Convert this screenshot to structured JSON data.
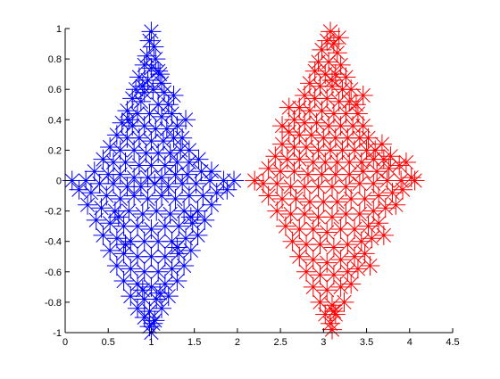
{
  "chart_data": {
    "type": "scatter",
    "title": "",
    "xlabel": "",
    "ylabel": "",
    "xlim": [
      0,
      4.5
    ],
    "ylim": [
      -1,
      1
    ],
    "grid": false,
    "legend": "none",
    "marker": "asterisk",
    "x_ticks": [
      "0",
      "0.5",
      "1",
      "1.5",
      "2",
      "2.5",
      "3",
      "3.5",
      "4",
      "4.5"
    ],
    "y_ticks": [
      "-1",
      "-0.8",
      "-0.6",
      "-0.4",
      "-0.2",
      "0",
      "0.2",
      "0.4",
      "0.6",
      "0.8",
      "1"
    ],
    "series": [
      {
        "color": "#0000ff",
        "points": [
          [
            1.0,
            0.98
          ],
          [
            0.98,
            0.92
          ],
          [
            1.03,
            0.88
          ],
          [
            0.95,
            0.82
          ],
          [
            1.05,
            0.8
          ],
          [
            0.92,
            0.76
          ],
          [
            1.0,
            0.74
          ],
          [
            1.08,
            0.72
          ],
          [
            0.86,
            0.68
          ],
          [
            0.96,
            0.66
          ],
          [
            1.12,
            0.64
          ],
          [
            0.82,
            0.6
          ],
          [
            0.92,
            0.58
          ],
          [
            1.02,
            0.6
          ],
          [
            1.15,
            0.58
          ],
          [
            0.78,
            0.54
          ],
          [
            0.88,
            0.52
          ],
          [
            1.08,
            0.5
          ],
          [
            1.2,
            0.5
          ],
          [
            0.72,
            0.46
          ],
          [
            0.84,
            0.44
          ],
          [
            0.98,
            0.44
          ],
          [
            1.12,
            0.42
          ],
          [
            1.24,
            0.44
          ],
          [
            0.66,
            0.38
          ],
          [
            0.78,
            0.36
          ],
          [
            0.92,
            0.36
          ],
          [
            1.05,
            0.34
          ],
          [
            1.18,
            0.34
          ],
          [
            1.3,
            0.36
          ],
          [
            0.6,
            0.3
          ],
          [
            0.72,
            0.28
          ],
          [
            0.86,
            0.28
          ],
          [
            1.0,
            0.26
          ],
          [
            1.14,
            0.26
          ],
          [
            1.26,
            0.28
          ],
          [
            1.36,
            0.28
          ],
          [
            0.52,
            0.22
          ],
          [
            0.64,
            0.2
          ],
          [
            0.8,
            0.2
          ],
          [
            0.94,
            0.18
          ],
          [
            1.08,
            0.18
          ],
          [
            1.22,
            0.18
          ],
          [
            1.34,
            0.2
          ],
          [
            1.44,
            0.2
          ],
          [
            0.44,
            0.14
          ],
          [
            0.56,
            0.12
          ],
          [
            0.7,
            0.12
          ],
          [
            0.86,
            0.1
          ],
          [
            1.0,
            0.1
          ],
          [
            1.16,
            0.1
          ],
          [
            1.3,
            0.12
          ],
          [
            1.44,
            0.12
          ],
          [
            1.55,
            0.14
          ],
          [
            0.34,
            0.06
          ],
          [
            0.5,
            0.04
          ],
          [
            0.64,
            0.04
          ],
          [
            0.8,
            0.02
          ],
          [
            0.96,
            0.02
          ],
          [
            1.12,
            0.02
          ],
          [
            1.28,
            0.04
          ],
          [
            1.42,
            0.04
          ],
          [
            1.58,
            0.06
          ],
          [
            1.7,
            0.06
          ],
          [
            0.24,
            0.0
          ],
          [
            0.4,
            -0.02
          ],
          [
            0.56,
            -0.02
          ],
          [
            0.72,
            -0.04
          ],
          [
            0.88,
            -0.04
          ],
          [
            1.04,
            -0.02
          ],
          [
            1.2,
            -0.04
          ],
          [
            1.36,
            -0.02
          ],
          [
            1.52,
            -0.02
          ],
          [
            1.68,
            0.0
          ],
          [
            1.84,
            0.0
          ],
          [
            1.96,
            0.0
          ],
          [
            0.08,
            0.0
          ],
          [
            0.16,
            -0.06
          ],
          [
            0.3,
            -0.08
          ],
          [
            0.48,
            -0.1
          ],
          [
            0.64,
            -0.12
          ],
          [
            0.8,
            -0.1
          ],
          [
            0.96,
            -0.12
          ],
          [
            1.12,
            -0.1
          ],
          [
            1.28,
            -0.12
          ],
          [
            1.44,
            -0.1
          ],
          [
            1.6,
            -0.1
          ],
          [
            1.76,
            -0.08
          ],
          [
            1.88,
            -0.06
          ],
          [
            0.26,
            -0.16
          ],
          [
            0.42,
            -0.18
          ],
          [
            0.58,
            -0.2
          ],
          [
            0.74,
            -0.2
          ],
          [
            0.9,
            -0.22
          ],
          [
            1.06,
            -0.2
          ],
          [
            1.22,
            -0.22
          ],
          [
            1.38,
            -0.2
          ],
          [
            1.54,
            -0.2
          ],
          [
            1.7,
            -0.16
          ],
          [
            0.36,
            -0.26
          ],
          [
            0.52,
            -0.28
          ],
          [
            0.68,
            -0.3
          ],
          [
            0.84,
            -0.3
          ],
          [
            1.0,
            -0.32
          ],
          [
            1.16,
            -0.3
          ],
          [
            1.32,
            -0.3
          ],
          [
            1.48,
            -0.28
          ],
          [
            1.62,
            -0.26
          ],
          [
            0.44,
            -0.36
          ],
          [
            0.6,
            -0.38
          ],
          [
            0.76,
            -0.4
          ],
          [
            0.92,
            -0.4
          ],
          [
            1.08,
            -0.4
          ],
          [
            1.24,
            -0.4
          ],
          [
            1.4,
            -0.38
          ],
          [
            1.54,
            -0.36
          ],
          [
            0.52,
            -0.46
          ],
          [
            0.68,
            -0.48
          ],
          [
            0.84,
            -0.5
          ],
          [
            1.0,
            -0.5
          ],
          [
            1.16,
            -0.5
          ],
          [
            1.32,
            -0.48
          ],
          [
            1.46,
            -0.46
          ],
          [
            0.6,
            -0.56
          ],
          [
            0.76,
            -0.58
          ],
          [
            0.92,
            -0.6
          ],
          [
            1.08,
            -0.6
          ],
          [
            1.24,
            -0.58
          ],
          [
            1.38,
            -0.56
          ],
          [
            0.68,
            -0.66
          ],
          [
            0.84,
            -0.68
          ],
          [
            1.0,
            -0.7
          ],
          [
            1.16,
            -0.68
          ],
          [
            1.3,
            -0.66
          ],
          [
            0.76,
            -0.76
          ],
          [
            0.92,
            -0.78
          ],
          [
            1.06,
            -0.78
          ],
          [
            1.2,
            -0.76
          ],
          [
            0.84,
            -0.84
          ],
          [
            0.98,
            -0.86
          ],
          [
            1.12,
            -0.84
          ],
          [
            0.92,
            -0.9
          ],
          [
            1.04,
            -0.92
          ],
          [
            0.98,
            -0.96
          ],
          [
            1.0,
            -1.0
          ],
          [
            1.02,
            -0.94
          ],
          [
            0.9,
            -0.72
          ],
          [
            1.1,
            -0.74
          ],
          [
            0.7,
            -0.42
          ],
          [
            1.3,
            -0.44
          ],
          [
            0.62,
            -0.24
          ],
          [
            1.46,
            -0.24
          ],
          [
            1.1,
            0.7
          ],
          [
            0.9,
            0.62
          ],
          [
            1.26,
            0.56
          ],
          [
            0.74,
            0.4
          ],
          [
            1.4,
            0.4
          ]
        ]
      },
      {
        "color": "#ff0000",
        "points": [
          [
            3.08,
            0.98
          ],
          [
            3.04,
            0.92
          ],
          [
            3.12,
            0.9
          ],
          [
            2.98,
            0.86
          ],
          [
            3.16,
            0.84
          ],
          [
            2.94,
            0.78
          ],
          [
            3.06,
            0.78
          ],
          [
            3.2,
            0.76
          ],
          [
            2.9,
            0.72
          ],
          [
            3.02,
            0.7
          ],
          [
            3.14,
            0.7
          ],
          [
            3.26,
            0.68
          ],
          [
            2.84,
            0.64
          ],
          [
            2.96,
            0.62
          ],
          [
            3.1,
            0.62
          ],
          [
            3.22,
            0.6
          ],
          [
            3.32,
            0.6
          ],
          [
            2.78,
            0.56
          ],
          [
            2.9,
            0.54
          ],
          [
            3.04,
            0.54
          ],
          [
            3.18,
            0.52
          ],
          [
            3.3,
            0.52
          ],
          [
            3.38,
            0.5
          ],
          [
            2.72,
            0.48
          ],
          [
            2.84,
            0.46
          ],
          [
            2.98,
            0.46
          ],
          [
            3.12,
            0.44
          ],
          [
            3.26,
            0.44
          ],
          [
            3.4,
            0.44
          ],
          [
            2.66,
            0.4
          ],
          [
            2.78,
            0.38
          ],
          [
            2.92,
            0.38
          ],
          [
            3.06,
            0.36
          ],
          [
            3.2,
            0.36
          ],
          [
            3.34,
            0.36
          ],
          [
            3.46,
            0.36
          ],
          [
            2.6,
            0.32
          ],
          [
            2.72,
            0.3
          ],
          [
            2.86,
            0.3
          ],
          [
            3.0,
            0.28
          ],
          [
            3.14,
            0.28
          ],
          [
            3.28,
            0.28
          ],
          [
            3.42,
            0.28
          ],
          [
            3.52,
            0.28
          ],
          [
            2.52,
            0.24
          ],
          [
            2.66,
            0.22
          ],
          [
            2.8,
            0.22
          ],
          [
            2.94,
            0.2
          ],
          [
            3.08,
            0.2
          ],
          [
            3.22,
            0.2
          ],
          [
            3.36,
            0.2
          ],
          [
            3.5,
            0.2
          ],
          [
            3.6,
            0.2
          ],
          [
            2.44,
            0.16
          ],
          [
            2.58,
            0.14
          ],
          [
            2.72,
            0.14
          ],
          [
            2.88,
            0.12
          ],
          [
            3.02,
            0.12
          ],
          [
            3.16,
            0.12
          ],
          [
            3.3,
            0.12
          ],
          [
            3.44,
            0.12
          ],
          [
            3.58,
            0.14
          ],
          [
            3.7,
            0.14
          ],
          [
            3.78,
            0.16
          ],
          [
            2.36,
            0.08
          ],
          [
            2.5,
            0.06
          ],
          [
            2.66,
            0.06
          ],
          [
            2.82,
            0.04
          ],
          [
            2.98,
            0.04
          ],
          [
            3.14,
            0.04
          ],
          [
            3.3,
            0.04
          ],
          [
            3.46,
            0.06
          ],
          [
            3.62,
            0.06
          ],
          [
            3.76,
            0.08
          ],
          [
            3.88,
            0.1
          ],
          [
            2.2,
            0.0
          ],
          [
            2.3,
            -0.02
          ],
          [
            2.46,
            -0.02
          ],
          [
            2.62,
            -0.04
          ],
          [
            2.78,
            -0.04
          ],
          [
            2.94,
            -0.04
          ],
          [
            3.1,
            -0.04
          ],
          [
            3.26,
            -0.04
          ],
          [
            3.42,
            -0.02
          ],
          [
            3.58,
            -0.02
          ],
          [
            3.74,
            0.0
          ],
          [
            3.9,
            0.0
          ],
          [
            4.02,
            0.02
          ],
          [
            2.36,
            -0.1
          ],
          [
            2.52,
            -0.12
          ],
          [
            2.68,
            -0.12
          ],
          [
            2.84,
            -0.14
          ],
          [
            3.0,
            -0.14
          ],
          [
            3.16,
            -0.14
          ],
          [
            3.32,
            -0.12
          ],
          [
            3.48,
            -0.12
          ],
          [
            3.64,
            -0.1
          ],
          [
            3.8,
            -0.08
          ],
          [
            3.92,
            -0.06
          ],
          [
            2.46,
            -0.2
          ],
          [
            2.62,
            -0.22
          ],
          [
            2.78,
            -0.22
          ],
          [
            2.94,
            -0.24
          ],
          [
            3.1,
            -0.24
          ],
          [
            3.26,
            -0.22
          ],
          [
            3.42,
            -0.22
          ],
          [
            3.58,
            -0.2
          ],
          [
            3.72,
            -0.18
          ],
          [
            2.56,
            -0.3
          ],
          [
            2.72,
            -0.32
          ],
          [
            2.88,
            -0.32
          ],
          [
            3.04,
            -0.34
          ],
          [
            3.2,
            -0.32
          ],
          [
            3.36,
            -0.32
          ],
          [
            3.52,
            -0.3
          ],
          [
            3.64,
            -0.28
          ],
          [
            2.64,
            -0.4
          ],
          [
            2.8,
            -0.42
          ],
          [
            2.96,
            -0.42
          ],
          [
            3.12,
            -0.44
          ],
          [
            3.28,
            -0.42
          ],
          [
            3.44,
            -0.4
          ],
          [
            3.56,
            -0.38
          ],
          [
            2.72,
            -0.5
          ],
          [
            2.88,
            -0.52
          ],
          [
            3.04,
            -0.54
          ],
          [
            3.2,
            -0.52
          ],
          [
            3.36,
            -0.5
          ],
          [
            3.48,
            -0.48
          ],
          [
            2.8,
            -0.6
          ],
          [
            2.96,
            -0.62
          ],
          [
            3.12,
            -0.62
          ],
          [
            3.28,
            -0.6
          ],
          [
            3.4,
            -0.58
          ],
          [
            2.88,
            -0.7
          ],
          [
            3.04,
            -0.72
          ],
          [
            3.2,
            -0.7
          ],
          [
            3.32,
            -0.68
          ],
          [
            2.96,
            -0.8
          ],
          [
            3.1,
            -0.82
          ],
          [
            3.24,
            -0.8
          ],
          [
            3.02,
            -0.88
          ],
          [
            3.14,
            -0.88
          ],
          [
            3.08,
            -0.94
          ],
          [
            3.1,
            -0.98
          ],
          [
            3.12,
            -0.86
          ],
          [
            3.18,
            0.94
          ],
          [
            3.46,
            0.56
          ],
          [
            3.1,
            0.66
          ],
          [
            3.68,
            0.24
          ],
          [
            3.96,
            0.12
          ],
          [
            4.06,
            0.0
          ],
          [
            3.84,
            -0.16
          ],
          [
            3.7,
            -0.36
          ],
          [
            3.54,
            -0.56
          ],
          [
            2.6,
            0.48
          ],
          [
            2.52,
            0.36
          ]
        ]
      }
    ]
  }
}
